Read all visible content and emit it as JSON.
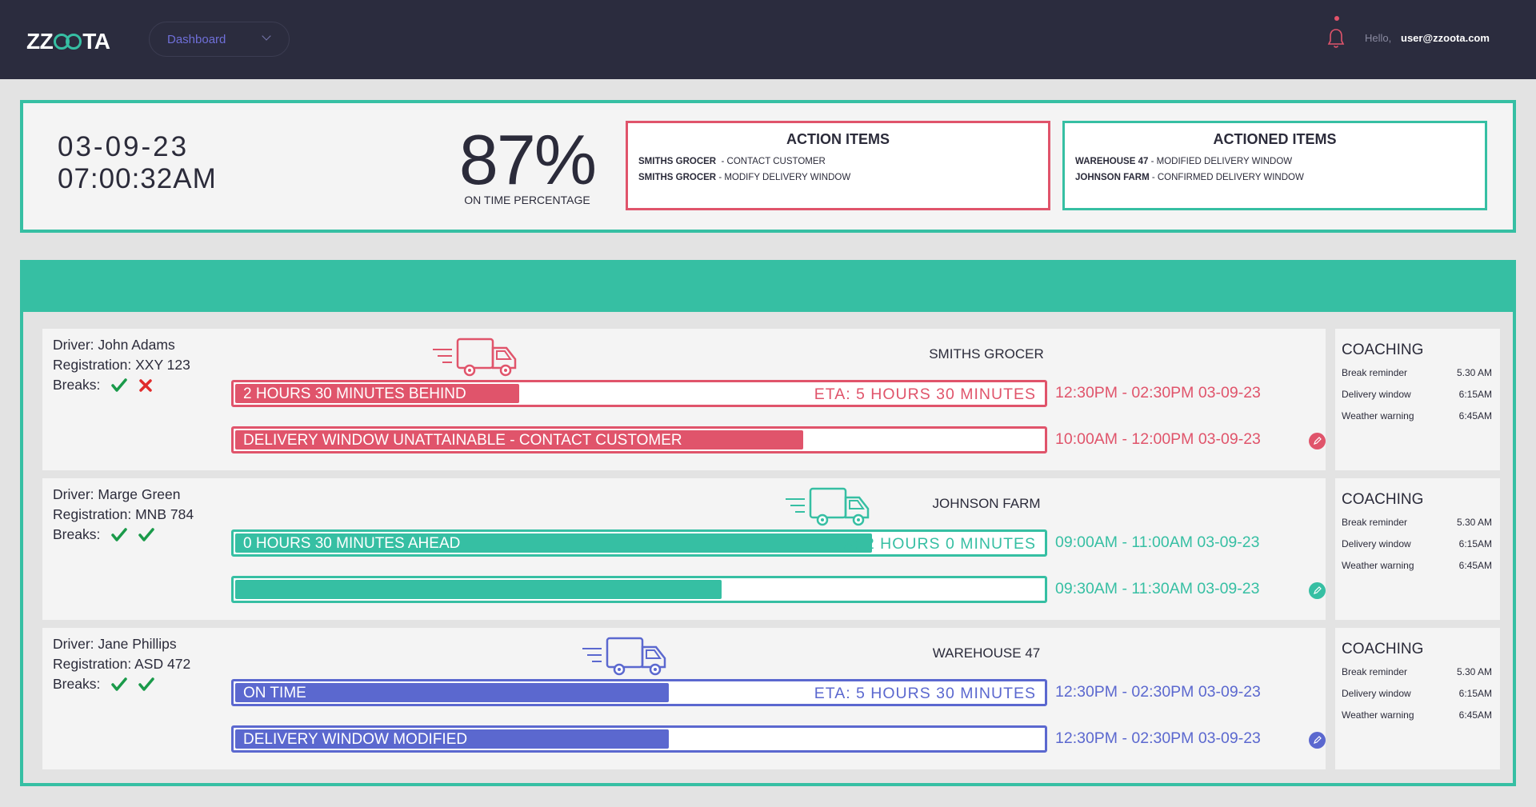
{
  "header": {
    "logo_left": "ZZ",
    "logo_right": "TA",
    "dashboard_select": "Dashboard",
    "greeting": "Hello,",
    "user_email": "user@zzoota.com"
  },
  "summary": {
    "date": "03-09-23",
    "time": "07:00:32AM",
    "on_time_percentage": "87%",
    "on_time_label": "ON TIME PERCENTAGE",
    "action_items": {
      "title": "ACTION ITEMS",
      "items": [
        {
          "name": "SMITHS GROCER",
          "action": "  - CONTACT CUSTOMER"
        },
        {
          "name": "SMITHS GROCER",
          "action": " - MODIFY DELIVERY WINDOW"
        }
      ]
    },
    "actioned_items": {
      "title": "ACTIONED ITEMS",
      "items": [
        {
          "name": "WAREHOUSE 47",
          "action": " - MODIFIED DELIVERY WINDOW"
        },
        {
          "name": "JOHNSON FARM",
          "action": " - CONFIRMED DELIVERY WINDOW"
        }
      ]
    }
  },
  "colors": {
    "red": "#e0546b",
    "green": "#36bfa3",
    "blue": "#5b68cf",
    "header_bg": "#2b2c3e"
  },
  "deliveries": [
    {
      "driver": "Driver: John Adams",
      "registration": "Registration: XXY 123",
      "breaks_label": "Breaks:",
      "breaks": [
        "check",
        "cross"
      ],
      "destination": "SMITHS GROCER",
      "color": "red",
      "status_bar": {
        "label": "2 HOURS 30 MINUTES BEHIND",
        "fill": 0.35,
        "eta": "ETA: 5 HOURS 30 MINUTES"
      },
      "window_bar": {
        "label": "DELIVERY WINDOW UNATTAINABLE - CONTACT CUSTOMER",
        "fill": 0.7
      },
      "window_1": "12:30PM - 02:30PM 03-09-23",
      "window_2": "10:00AM - 12:00PM 03-09-23",
      "truck_position": 0.35,
      "coaching": {
        "title": "COACHING",
        "items": [
          {
            "label": "Break reminder",
            "time": "5.30 AM"
          },
          {
            "label": "Delivery window",
            "time": "6:15AM"
          },
          {
            "label": "Weather warning",
            "time": "6:45AM"
          }
        ]
      }
    },
    {
      "driver": "Driver: Marge Green",
      "registration": "Registration: MNB 784",
      "breaks_label": "Breaks:",
      "breaks": [
        "check",
        "check"
      ],
      "destination": "JOHNSON FARM",
      "color": "green",
      "status_bar": {
        "label": "0 HOURS 30 MINUTES AHEAD",
        "fill": 0.785,
        "eta": "ETA: 2 HOURS 0 MINUTES"
      },
      "window_bar": {
        "label": "",
        "fill": 0.6
      },
      "window_1": "09:00AM - 11:00AM 03-09-23",
      "window_2": "09:30AM - 11:30AM 03-09-23",
      "truck_position": 0.785,
      "coaching": {
        "title": "COACHING",
        "items": [
          {
            "label": "Break reminder",
            "time": "5.30 AM"
          },
          {
            "label": "Delivery window",
            "time": "6:15AM"
          },
          {
            "label": "Weather warning",
            "time": "6:45AM"
          }
        ]
      }
    },
    {
      "driver": "Driver: Jane Phillips",
      "registration": "Registration: ASD 472",
      "breaks_label": "Breaks:",
      "breaks": [
        "check",
        "check"
      ],
      "destination": "WAREHOUSE 47",
      "color": "blue",
      "status_bar": {
        "label": "ON TIME",
        "fill": 0.535,
        "eta": "ETA: 5 HOURS 30 MINUTES"
      },
      "window_bar": {
        "label": "DELIVERY WINDOW MODIFIED",
        "fill": 0.535
      },
      "window_1": "12:30PM - 02:30PM 03-09-23",
      "window_2": "12:30PM - 02:30PM 03-09-23",
      "truck_position": 0.535,
      "coaching": {
        "title": "COACHING",
        "items": [
          {
            "label": "Break reminder",
            "time": "5.30 AM"
          },
          {
            "label": "Delivery window",
            "time": "6:15AM"
          },
          {
            "label": "Weather warning",
            "time": "6:45AM"
          }
        ]
      }
    }
  ]
}
